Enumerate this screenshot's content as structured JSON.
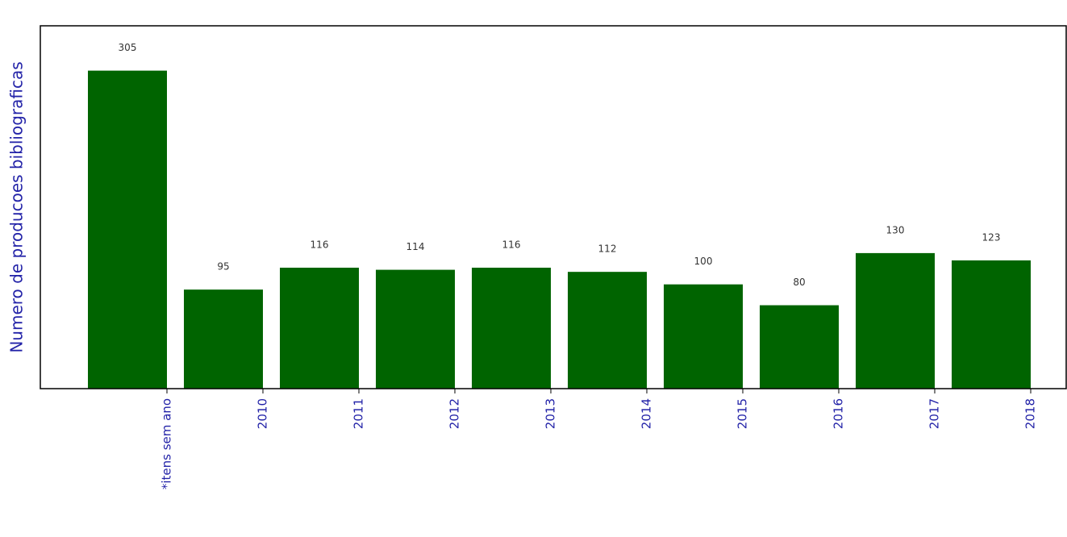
{
  "chart_data": {
    "type": "bar",
    "y_label": "Numero de producoes bibliograficas",
    "categories": [
      "*itens sem ano",
      "2010",
      "2011",
      "2012",
      "2013",
      "2014",
      "2015",
      "2016",
      "2017",
      "2018"
    ],
    "values": [
      305,
      95,
      116,
      114,
      116,
      112,
      100,
      80,
      130,
      123
    ],
    "color": "#006400",
    "ylim": [
      0,
      348
    ],
    "yticks": [],
    "grid": false
  }
}
